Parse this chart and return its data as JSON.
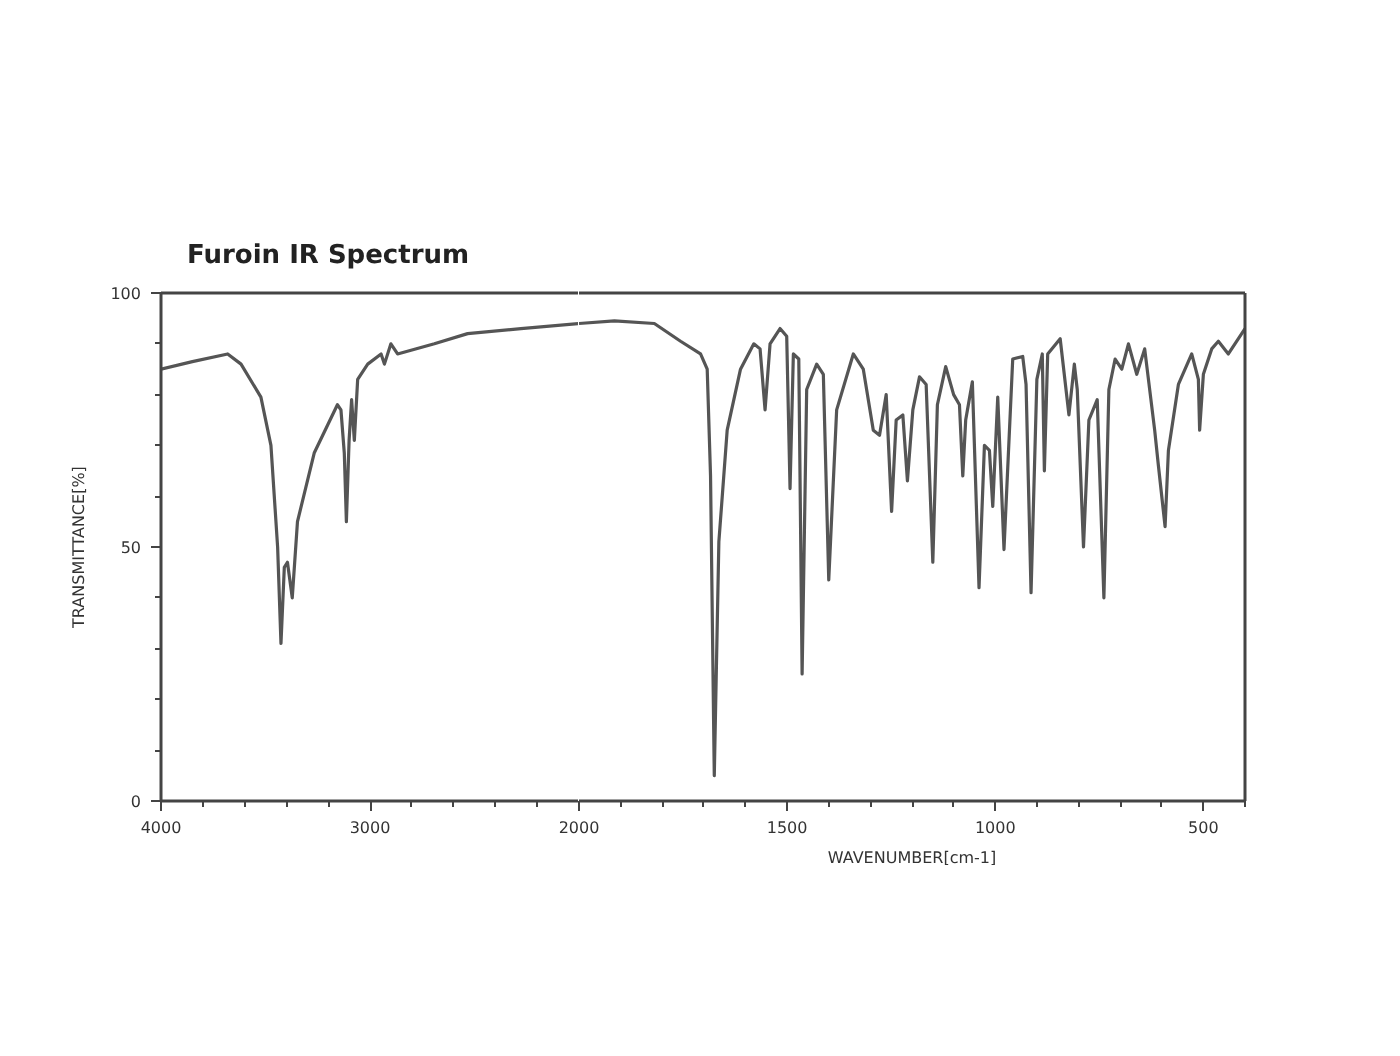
{
  "chart_data": [
    {
      "type": "line",
      "title": "Furoin IR Spectrum",
      "ylabel": "TRANSMITTANCE[%]",
      "xlim": [
        4000,
        2000
      ],
      "xticks": [
        4000,
        3000
      ],
      "ylim": [
        0,
        100
      ],
      "yticks": [
        0,
        50,
        100
      ],
      "line_style": "solid",
      "x": [
        4000,
        3850,
        3681,
        3617,
        3522,
        3474,
        3442,
        3426,
        3410,
        3395,
        3372,
        3347,
        3267,
        3156,
        3139,
        3123,
        3113,
        3100,
        3088,
        3075,
        3059,
        3011,
        2947,
        2931,
        2900,
        2868,
        2692,
        2533,
        2278,
        2000
      ],
      "series": [
        {
          "color": "#555555",
          "values": [
            85,
            86.5,
            88,
            86,
            79.5,
            70,
            50,
            31,
            46,
            47,
            40,
            55,
            68.5,
            78,
            77,
            68.5,
            55,
            71,
            79,
            71,
            83,
            86,
            88,
            86,
            90,
            88,
            90,
            92,
            93,
            94
          ]
        }
      ]
    },
    {
      "type": "line",
      "xlabel": "WAVENUMBER[cm-1]",
      "tick_labels": "x",
      "xlim": [
        2000,
        400
      ],
      "xticks": [
        2000,
        1500,
        1000,
        500
      ],
      "ylim": [
        0,
        100
      ],
      "line_style": "solid",
      "x": [
        2000,
        1915,
        1819,
        1756,
        1708,
        1692,
        1684,
        1675,
        1664,
        1644,
        1612,
        1580,
        1565,
        1553,
        1541,
        1517,
        1501,
        1493,
        1485,
        1472,
        1464,
        1453,
        1429,
        1413,
        1400,
        1381,
        1341,
        1317,
        1293,
        1278,
        1262,
        1249,
        1238,
        1222,
        1211,
        1198,
        1182,
        1166,
        1150,
        1139,
        1119,
        1100,
        1086,
        1078,
        1071,
        1055,
        1039,
        1026,
        1014,
        1006,
        994,
        979,
        958,
        934,
        926,
        914,
        900,
        887,
        882,
        874,
        844,
        823,
        810,
        803,
        788,
        775,
        755,
        739,
        727,
        712,
        696,
        680,
        660,
        641,
        617,
        608,
        592,
        584,
        560,
        528,
        512,
        509,
        500,
        480,
        464,
        440,
        400
      ],
      "series": [
        {
          "color": "#555555",
          "values": [
            94,
            94.5,
            94,
            90.5,
            88,
            85,
            64,
            5,
            51,
            73,
            85,
            90,
            89,
            77,
            90,
            93,
            91.5,
            61.5,
            88,
            87,
            25,
            81,
            86,
            84,
            43.5,
            77,
            88,
            85,
            73,
            72,
            80,
            57,
            75,
            76,
            63,
            77,
            83.5,
            82,
            47,
            78,
            85.5,
            80,
            78,
            64,
            75,
            82.5,
            42,
            70,
            69,
            58,
            79.5,
            49.5,
            87,
            87.5,
            82,
            41,
            83,
            88,
            65,
            88,
            91,
            76,
            86,
            81,
            50,
            75,
            79,
            40,
            81,
            87,
            85,
            90,
            84,
            89,
            73,
            66,
            54,
            69,
            82,
            88,
            83,
            73,
            84,
            89,
            90.5,
            88,
            93
          ]
        }
      ]
    }
  ]
}
